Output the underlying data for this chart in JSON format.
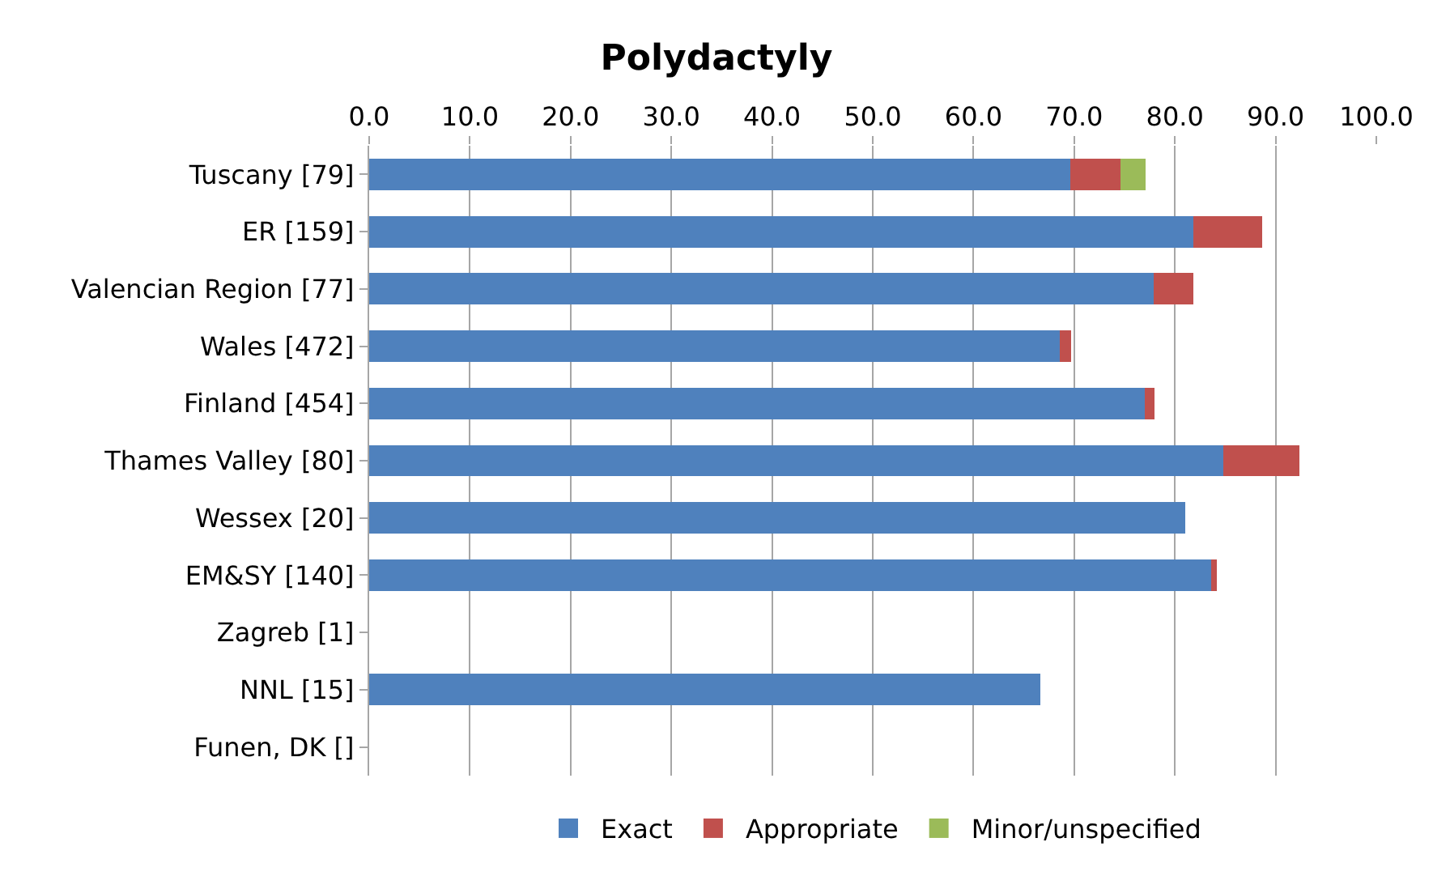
{
  "chart_data": {
    "type": "bar",
    "title": "Polydactyly",
    "orientation": "horizontal",
    "stacked": true,
    "categories": [
      "Tuscany [79]",
      "ER [159]",
      "Valencian Region [77]",
      "Wales [472]",
      "Finland [454]",
      "Thames Valley [80]",
      "Wessex [20]",
      "EM&SY [140]",
      "Zagreb [1]",
      "NNL [15]",
      "Funen, DK []"
    ],
    "series": [
      {
        "name": "Exact",
        "color": "#4f81bd",
        "values": [
          69.6,
          81.8,
          77.9,
          68.6,
          77.0,
          84.8,
          81.0,
          83.6,
          null,
          66.6,
          null
        ]
      },
      {
        "name": "Appropriate",
        "color": "#c0504d",
        "values": [
          5.0,
          6.9,
          3.9,
          1.1,
          1.0,
          7.6,
          null,
          0.6,
          null,
          null,
          null
        ]
      },
      {
        "name": "Minor/unspecified",
        "color": "#9bbb59",
        "values": [
          2.5,
          null,
          null,
          null,
          null,
          null,
          null,
          null,
          null,
          null,
          null
        ]
      }
    ],
    "xlim": [
      0,
      100
    ],
    "xticks": [
      {
        "value": 0,
        "label": "0.0"
      },
      {
        "value": 10,
        "label": "10.0"
      },
      {
        "value": 20,
        "label": "20.0"
      },
      {
        "value": 30,
        "label": "30.0"
      },
      {
        "value": 40,
        "label": "40.0"
      },
      {
        "value": 50,
        "label": "50.0"
      },
      {
        "value": 60,
        "label": "60.0"
      },
      {
        "value": 70,
        "label": "70.0"
      },
      {
        "value": 80,
        "label": "80.0"
      },
      {
        "value": 90,
        "label": "90.0"
      },
      {
        "value": 100,
        "label": "100.0"
      }
    ],
    "grid": "x",
    "legend": "bottom"
  }
}
